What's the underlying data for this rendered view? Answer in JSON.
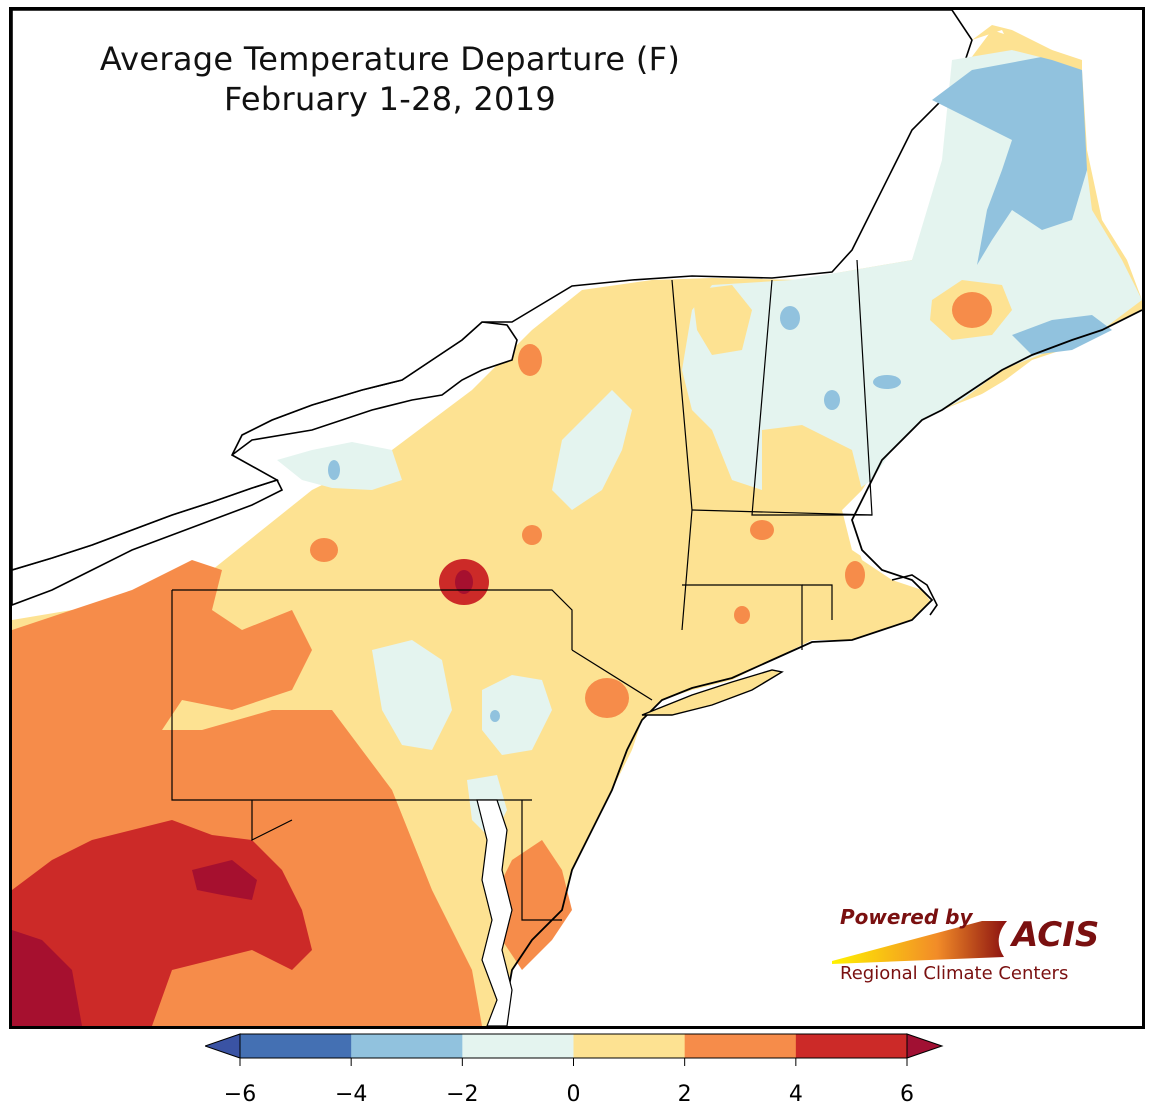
{
  "title": "Average Temperature Departure (F)",
  "subtitle": "February 1-28, 2019",
  "branding": {
    "powered_by": "Powered by",
    "name": "ACIS",
    "subtitle": "Regional Climate Centers"
  },
  "legend": {
    "ticks": [
      "−6",
      "−4",
      "−2",
      "0",
      "2",
      "4",
      "6"
    ],
    "bins": [
      {
        "range": "-6 to -4",
        "color": "#4470b3"
      },
      {
        "range": "-4 to -2",
        "color": "#91c2de"
      },
      {
        "range": "-2 to 0",
        "color": "#e4f4ef"
      },
      {
        "range": "0 to 2",
        "color": "#fde292"
      },
      {
        "range": "2 to 4",
        "color": "#f68c4a"
      },
      {
        "range": "4 to 6",
        "color": "#cc2a28"
      }
    ],
    "under_color": "#3a53a4",
    "over_color": "#a11033"
  },
  "colors": {
    "extreme_warm": "#a6102f",
    "lake_water": "#ffffff",
    "border": "#000000"
  }
}
